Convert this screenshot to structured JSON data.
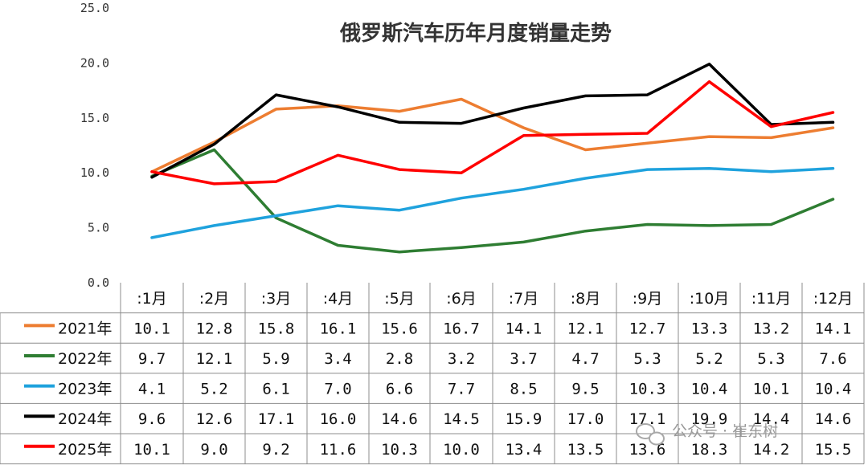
{
  "chart_data": {
    "type": "line",
    "title": "俄罗斯汽车历年月度销量走势",
    "y_ticks": [
      "0.0",
      "5.0",
      "10.0",
      "15.0",
      "20.0",
      "25.0"
    ],
    "ylim": [
      0,
      25
    ],
    "categories": [
      ":1月",
      ":2月",
      ":3月",
      ":4月",
      ":5月",
      ":6月",
      ":7月",
      ":8月",
      ":9月",
      ":10月",
      ":11月",
      ":12月"
    ],
    "series": [
      {
        "name": "2021年",
        "color": "#ED7D31",
        "values": [
          10.1,
          12.8,
          15.8,
          16.1,
          15.6,
          16.7,
          14.1,
          12.1,
          12.7,
          13.3,
          13.2,
          14.1
        ],
        "labels": [
          "10.1",
          "12.8",
          "15.8",
          "16.1",
          "15.6",
          "16.7",
          "14.1",
          "12.1",
          "12.7",
          "13.3",
          "13.2",
          "14.1"
        ]
      },
      {
        "name": "2022年",
        "color": "#2E7D32",
        "values": [
          9.7,
          12.1,
          5.9,
          3.4,
          2.8,
          3.2,
          3.7,
          4.7,
          5.3,
          5.2,
          5.3,
          7.6
        ],
        "labels": [
          "9.7",
          "12.1",
          "5.9",
          "3.4",
          "2.8",
          "3.2",
          "3.7",
          "4.7",
          "5.3",
          "5.2",
          "5.3",
          "7.6"
        ]
      },
      {
        "name": "2023年",
        "color": "#1FA2DD",
        "values": [
          4.1,
          5.2,
          6.1,
          7.0,
          6.6,
          7.7,
          8.5,
          9.5,
          10.3,
          10.4,
          10.1,
          10.4
        ],
        "labels": [
          "4.1",
          "5.2",
          "6.1",
          "7.0",
          "6.6",
          "7.7",
          "8.5",
          "9.5",
          "10.3",
          "10.4",
          "10.1",
          "10.4"
        ]
      },
      {
        "name": "2024年",
        "color": "#000000",
        "values": [
          9.6,
          12.6,
          17.1,
          16.0,
          14.6,
          14.5,
          15.9,
          17.0,
          17.1,
          19.9,
          14.4,
          14.6
        ],
        "labels": [
          "9.6",
          "12.6",
          "17.1",
          "16.0",
          "14.6",
          "14.5",
          "15.9",
          "17.0",
          "17.1",
          "19.9",
          "14.4",
          "14.6"
        ]
      },
      {
        "name": "2025年",
        "color": "#FF0000",
        "values": [
          10.1,
          9.0,
          9.2,
          11.6,
          10.3,
          10.0,
          13.4,
          13.5,
          13.6,
          18.3,
          14.2,
          15.5
        ],
        "labels": [
          "10.1",
          "9.0",
          "9.2",
          "11.6",
          "10.3",
          "10.0",
          "13.4",
          "13.5",
          "13.6",
          "18.3",
          "14.2",
          "15.5"
        ]
      }
    ],
    "grid": false,
    "legend": "data-table-left"
  },
  "watermark": "公众号 · 崔东树"
}
